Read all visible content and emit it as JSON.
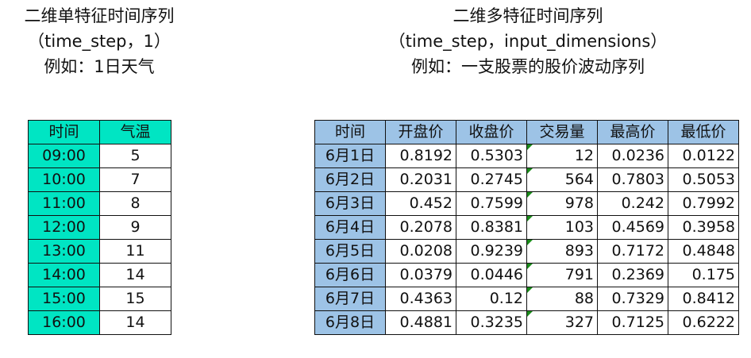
{
  "left": {
    "title_lines": [
      "二维单特征时间序列",
      "（time_step，1）",
      "例如：1日天气"
    ],
    "headers": [
      "时间",
      "气温"
    ],
    "rows": [
      [
        "09:00",
        "5"
      ],
      [
        "10:00",
        "7"
      ],
      [
        "11:00",
        "8"
      ],
      [
        "12:00",
        "9"
      ],
      [
        "13:00",
        "11"
      ],
      [
        "14:00",
        "14"
      ],
      [
        "15:00",
        "15"
      ],
      [
        "16:00",
        "14"
      ]
    ],
    "header_color": "#00E5C3"
  },
  "right": {
    "title_lines": [
      "二维多特征时间序列",
      "（time_step，input_dimensions）",
      "例如：一支股票的股价波动序列"
    ],
    "headers": [
      "时间",
      "开盘价",
      "收盘价",
      "交易量",
      "最高价",
      "最低价"
    ],
    "rows": [
      [
        "6月1日",
        "0.8192",
        "0.5303",
        "12",
        "0.0236",
        "0.0122"
      ],
      [
        "6月2日",
        "0.2031",
        "0.2745",
        "564",
        "0.7803",
        "0.5053"
      ],
      [
        "6月3日",
        "0.452",
        "0.7599",
        "978",
        "0.242",
        "0.7992"
      ],
      [
        "6月4日",
        "0.2078",
        "0.8381",
        "103",
        "0.4569",
        "0.3958"
      ],
      [
        "6月5日",
        "0.0208",
        "0.9239",
        "893",
        "0.7172",
        "0.4848"
      ],
      [
        "6月6日",
        "0.0379",
        "0.0446",
        "791",
        "0.2369",
        "0.175"
      ],
      [
        "6月7日",
        "0.4363",
        "0.12",
        "88",
        "0.7329",
        "0.8412"
      ],
      [
        "6月8日",
        "0.4881",
        "0.3235",
        "327",
        "0.7125",
        "0.6222"
      ]
    ],
    "header_color": "#9DC3E6"
  }
}
